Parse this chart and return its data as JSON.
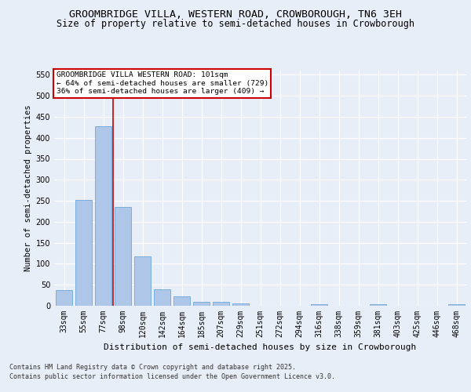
{
  "title": "GROOMBRIDGE VILLA, WESTERN ROAD, CROWBOROUGH, TN6 3EH",
  "subtitle": "Size of property relative to semi-detached houses in Crowborough",
  "xlabel": "Distribution of semi-detached houses by size in Crowborough",
  "ylabel": "Number of semi-detached properties",
  "categories": [
    "33sqm",
    "55sqm",
    "77sqm",
    "98sqm",
    "120sqm",
    "142sqm",
    "164sqm",
    "185sqm",
    "207sqm",
    "229sqm",
    "251sqm",
    "272sqm",
    "294sqm",
    "316sqm",
    "338sqm",
    "359sqm",
    "381sqm",
    "403sqm",
    "425sqm",
    "446sqm",
    "468sqm"
  ],
  "values": [
    37,
    252,
    428,
    236,
    118,
    40,
    22,
    10,
    9,
    6,
    0,
    0,
    0,
    4,
    0,
    0,
    3,
    0,
    0,
    0,
    3
  ],
  "bar_color": "#aec6e8",
  "bar_edge_color": "#5a9fd4",
  "vline_x_index": 3,
  "vline_color": "#cc0000",
  "ylim": [
    0,
    560
  ],
  "yticks": [
    0,
    50,
    100,
    150,
    200,
    250,
    300,
    350,
    400,
    450,
    500,
    550
  ],
  "annotation_text": "GROOMBRIDGE VILLA WESTERN ROAD: 101sqm\n← 64% of semi-detached houses are smaller (729)\n36% of semi-detached houses are larger (409) →",
  "annotation_box_color": "#ffffff",
  "annotation_box_edge": "#cc0000",
  "footer_line1": "Contains HM Land Registry data © Crown copyright and database right 2025.",
  "footer_line2": "Contains public sector information licensed under the Open Government Licence v3.0.",
  "title_fontsize": 9.5,
  "subtitle_fontsize": 8.5,
  "background_color": "#e8eef7",
  "plot_background": "#e8eef7",
  "grid_color": "#ffffff",
  "tick_fontsize": 7,
  "ylabel_fontsize": 7.5,
  "xlabel_fontsize": 8,
  "annotation_fontsize": 6.8,
  "footer_fontsize": 6
}
